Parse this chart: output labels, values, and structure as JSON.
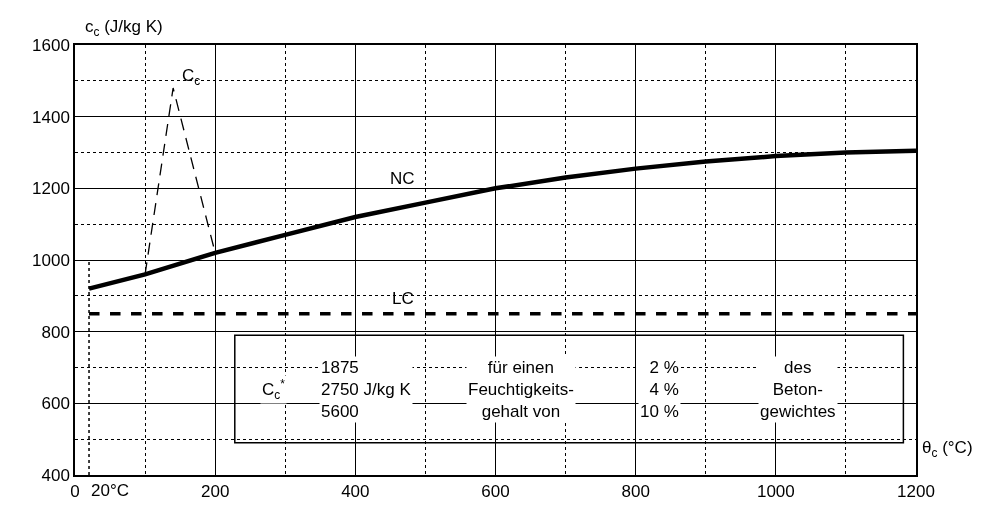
{
  "chart_data": {
    "type": "line",
    "ylabel": "c$_{c}$ (J/kg K)",
    "xlabel": "θ$_{c}$ (°C)",
    "xlim": [
      0,
      1200
    ],
    "xticks": [
      0,
      200,
      400,
      600,
      800,
      1000,
      1200
    ],
    "ylim": [
      400,
      1600
    ],
    "yticks": [
      400,
      600,
      800,
      1000,
      1200,
      1400,
      1600
    ],
    "grid": true,
    "series": [
      {
        "color": "#000000",
        "line_style": "solid",
        "x": [
          20,
          100,
          200,
          300,
          400,
          500,
          600,
          700,
          800,
          900,
          1000,
          1100,
          1200
        ],
        "values": [
          920,
          960,
          1020,
          1070,
          1120,
          1160,
          1200,
          1230,
          1255,
          1275,
          1290,
          1300,
          1305
        ]
      },
      {
        "color": "#000000",
        "line_style": "dashed",
        "x": [
          20,
          1200
        ],
        "values": [
          850,
          850
        ]
      },
      {
        "color": "#000000",
        "line_style": "dashed",
        "x": [
          100,
          140,
          200
        ],
        "values": [
          960,
          1480,
          1020
        ]
      }
    ],
    "ref_lines": [
      {
        "axis": "x",
        "value": 20,
        "label": "20°C",
        "color": "#000000",
        "line_style": "dotted"
      }
    ],
    "annotations": [
      "NC",
      "LC",
      "C$_{c}$",
      "C$_{c}$$^{*}$",
      "1875\n2750 J/kg K\n5600",
      "für einen\nFeuchtigkeits-\ngehalt von",
      "2 %\n4 %\n10 %",
      "des\nBeton-\ngewichtes"
    ]
  }
}
